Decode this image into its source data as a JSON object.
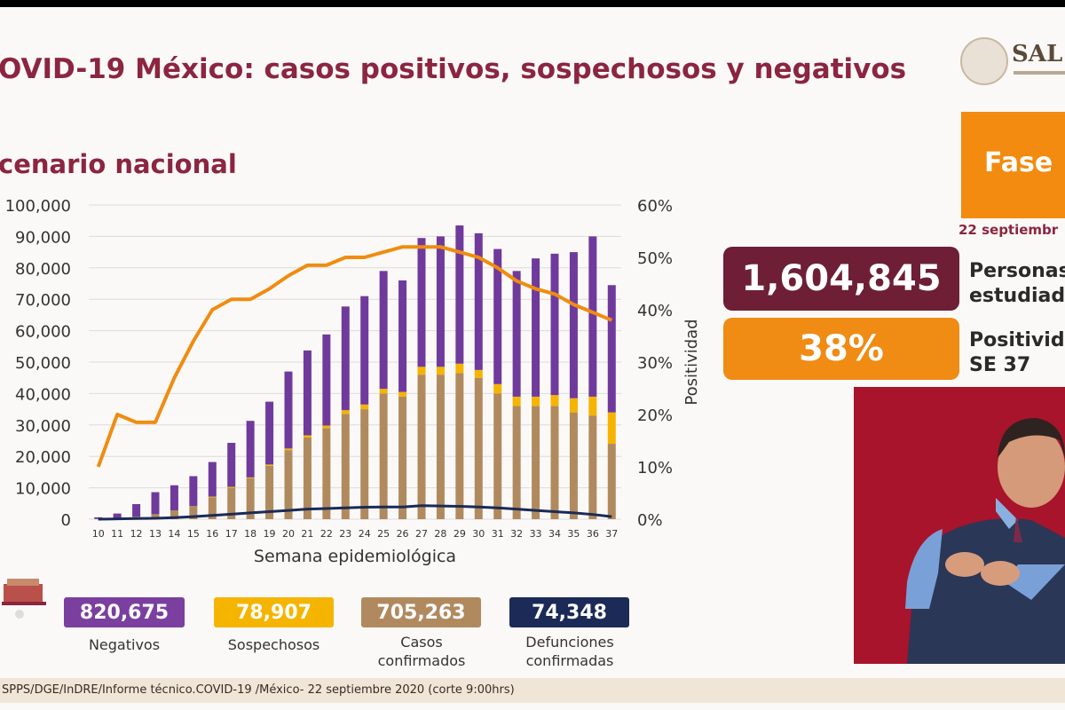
{
  "header": {
    "title": "OVID-19 México: casos positivos, sospechosos y negativos",
    "subtitle": "cenario nacional",
    "logo_text": "SAL",
    "phase_label": "Fase",
    "date": "22 septiembr"
  },
  "stats": {
    "personas_value": "1,604,845",
    "personas_label_1": "Personas",
    "personas_label_2": "estudiad",
    "positividad_value": "38%",
    "positividad_label_1": "Positivid",
    "positividad_label_2": "SE 37"
  },
  "totals": [
    {
      "value": "820,675",
      "label": "Negativos",
      "color": "#7b3fa0"
    },
    {
      "value": "78,907",
      "label": "Sospechosos",
      "color": "#f5b400"
    },
    {
      "value": "705,263",
      "label": "Casos confirmados",
      "color": "#b08a5e"
    },
    {
      "value": "74,348",
      "label": "Defunciones confirmadas",
      "color": "#1b2a57"
    }
  ],
  "footer": "SPPS/DGE/InDRE/Informe técnico.COVID-19 /México- 22 septiembre 2020 (corte 9:00hrs)",
  "colors": {
    "negativos": "#6f3a9c",
    "sospechosos": "#f5b400",
    "confirmados": "#b08a5e",
    "positividad": "#f08c10",
    "defunciones": "#1b2a57",
    "title": "#8b2540"
  },
  "chart_data": {
    "type": "bar",
    "stacked": true,
    "xlabel": "Semana epidemiológica",
    "ylabel": "",
    "y2label": "Positividad",
    "ylim": [
      0,
      100000
    ],
    "y2lim": [
      0,
      60
    ],
    "y_ticks": [
      "0",
      "10,000",
      "20,000",
      "30,000",
      "40,000",
      "50,000",
      "60,000",
      "70,000",
      "80,000",
      "90,000",
      "100,000"
    ],
    "y2_ticks": [
      "0%",
      "10%",
      "20%",
      "30%",
      "40%",
      "50%",
      "60%"
    ],
    "categories": [
      "10",
      "11",
      "12",
      "13",
      "14",
      "15",
      "16",
      "17",
      "18",
      "19",
      "20",
      "21",
      "22",
      "23",
      "24",
      "25",
      "26",
      "27",
      "28",
      "29",
      "30",
      "31",
      "32",
      "33",
      "34",
      "35",
      "36",
      "37"
    ],
    "series": [
      {
        "name": "Casos confirmados",
        "values": [
          100,
          300,
          800,
          1600,
          2800,
          4200,
          7000,
          10000,
          13000,
          17000,
          22000,
          26000,
          29000,
          33500,
          35000,
          40000,
          39000,
          46000,
          46000,
          46500,
          45000,
          40000,
          36000,
          36000,
          36000,
          34000,
          33000,
          24000
        ]
      },
      {
        "name": "Sospechosos",
        "values": [
          0,
          0,
          0,
          0,
          0,
          0,
          200,
          300,
          300,
          400,
          500,
          700,
          800,
          1200,
          1500,
          1500,
          1500,
          2500,
          2500,
          3000,
          2500,
          3000,
          3000,
          3000,
          3500,
          4500,
          6000,
          10000
        ]
      },
      {
        "name": "Negativos",
        "values": [
          500,
          1500,
          4000,
          7000,
          8000,
          9500,
          11000,
          14000,
          18000,
          20000,
          24500,
          27000,
          29000,
          33000,
          34500,
          37500,
          35500,
          41000,
          41500,
          44000,
          43500,
          43000,
          40000,
          44000,
          45000,
          46500,
          51000,
          40500
        ]
      },
      {
        "name": "Defunciones",
        "type": "line",
        "values": [
          0,
          100,
          200,
          300,
          500,
          800,
          1200,
          1600,
          2000,
          2400,
          2800,
          3200,
          3400,
          3600,
          3800,
          3900,
          3900,
          4300,
          4200,
          4100,
          3900,
          3600,
          3200,
          2800,
          2400,
          2000,
          1500,
          800
        ]
      },
      {
        "name": "Positividad",
        "type": "line",
        "axis": "y2",
        "values": [
          10,
          20,
          18.5,
          18.5,
          27,
          34,
          40,
          42,
          42,
          44,
          46.5,
          48.5,
          48.5,
          50,
          50,
          51,
          52,
          52,
          52,
          51,
          50,
          48,
          45.5,
          44,
          43,
          41,
          39.5,
          38
        ]
      }
    ]
  }
}
